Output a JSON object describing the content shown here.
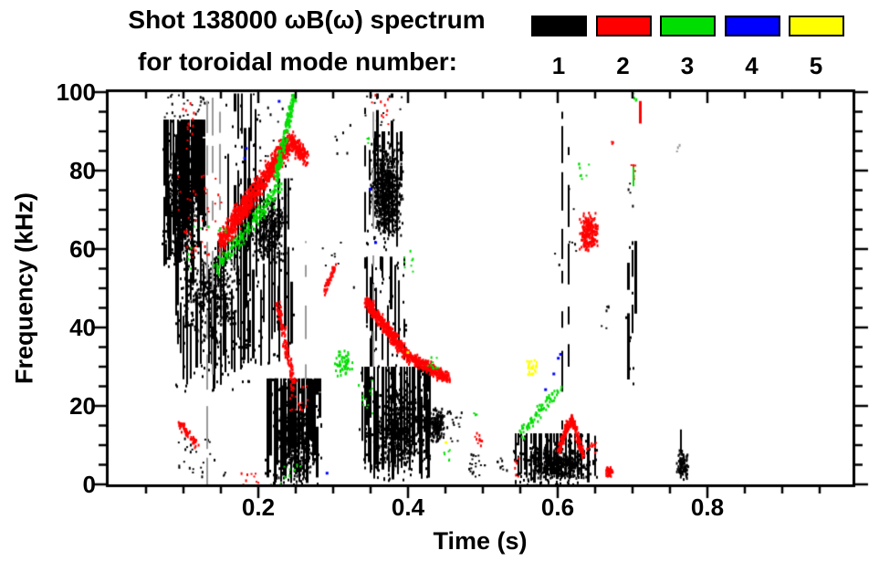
{
  "title": {
    "line1": "Shot 138000 ωB(ω) spectrum",
    "line2": "for toroidal mode number:"
  },
  "legend": {
    "items": [
      {
        "label": "1",
        "color": "#000000"
      },
      {
        "label": "2",
        "color": "#ff0000"
      },
      {
        "label": "3",
        "color": "#00dd00"
      },
      {
        "label": "4",
        "color": "#0000ff"
      },
      {
        "label": "5",
        "color": "#ffff00"
      }
    ]
  },
  "axes": {
    "x": {
      "label": "Time (s)",
      "tick_labels": [
        "0.2",
        "0.4",
        "0.6",
        "0.8"
      ]
    },
    "y": {
      "label": "Frequency (kHz)",
      "tick_labels": [
        "0",
        "20",
        "40",
        "60",
        "80",
        "100"
      ]
    }
  },
  "chart_data": {
    "type": "scatter",
    "title": "Shot 138000 ωB(ω) spectrum for toroidal mode number: 1 2 3 4 5",
    "xlabel": "Time (s)",
    "ylabel": "Frequency (kHz)",
    "xlim": [
      0,
      0.995
    ],
    "ylim": [
      0,
      100
    ],
    "x_major_ticks": [
      0.2,
      0.4,
      0.6,
      0.8
    ],
    "x_minor_step": 0.05,
    "y_major_ticks": [
      0,
      20,
      40,
      60,
      80,
      100
    ],
    "y_minor_step": 5,
    "grid": false,
    "legend_position": "top-right",
    "mode_colors": {
      "1": "#000000",
      "2": "#ff0000",
      "3": "#00dd00",
      "4": "#0000ff",
      "5": "#ffff00",
      "faint": "#9a9a9a"
    },
    "clusters": [
      {
        "m": 1,
        "s": "vstreaks",
        "t": [
          0.073,
          0.128
        ],
        "f": [
          55,
          93
        ],
        "c": 24,
        "dense": true
      },
      {
        "m": 1,
        "s": "blob",
        "t": [
          0.078,
          0.118
        ],
        "f": [
          57,
          90
        ],
        "n": 650
      },
      {
        "m": 1,
        "s": "specks",
        "t": [
          0.073,
          0.132
        ],
        "f": [
          92,
          100
        ],
        "n": 30
      },
      {
        "m": 1,
        "s": "vstreaks",
        "t": [
          0.088,
          0.19
        ],
        "f": [
          24,
          62
        ],
        "c": 30
      },
      {
        "m": 1,
        "s": "blob",
        "t": [
          0.095,
          0.175
        ],
        "f": [
          35,
          60
        ],
        "n": 350
      },
      {
        "m": 1,
        "s": "specks",
        "t": [
          0.088,
          0.155
        ],
        "f": [
          2,
          12
        ],
        "n": 26
      },
      {
        "m": 1,
        "s": "vstreaks",
        "t": [
          0.158,
          0.2
        ],
        "f": [
          60,
          100
        ],
        "c": 9
      },
      {
        "m": 1,
        "s": "vstreaks",
        "t": [
          0.175,
          0.245
        ],
        "f": [
          30,
          78
        ],
        "c": 20
      },
      {
        "m": 1,
        "s": "blob",
        "t": [
          0.19,
          0.24
        ],
        "f": [
          55,
          75
        ],
        "n": 280
      },
      {
        "m": 1,
        "s": "vstreaks",
        "t": [
          0.212,
          0.282
        ],
        "f": [
          0,
          27
        ],
        "c": 26,
        "dense": true
      },
      {
        "m": 1,
        "s": "blob",
        "t": [
          0.222,
          0.275
        ],
        "f": [
          1,
          22
        ],
        "n": 420
      },
      {
        "m": 1,
        "s": "specks",
        "t": [
          0.198,
          0.242
        ],
        "f": [
          80,
          100
        ],
        "n": 16
      },
      {
        "m": 1,
        "s": "specks",
        "t": [
          0.282,
          0.33
        ],
        "f": [
          50,
          62
        ],
        "n": 8
      },
      {
        "m": 1,
        "s": "specks",
        "t": [
          0.298,
          0.33
        ],
        "f": [
          84,
          94
        ],
        "n": 6
      },
      {
        "m": 1,
        "s": "col",
        "at": 0.341,
        "f": [
          55,
          96
        ],
        "w": 2
      },
      {
        "m": 1,
        "s": "blob",
        "t": [
          0.347,
          0.393
        ],
        "f": [
          62,
          88
        ],
        "n": 700
      },
      {
        "m": 1,
        "s": "vstreaks",
        "t": [
          0.348,
          0.392
        ],
        "f": [
          60,
          90
        ],
        "c": 9
      },
      {
        "m": 1,
        "s": "col",
        "at": 0.357,
        "f": [
          86,
          100
        ],
        "w": 3
      },
      {
        "m": 1,
        "s": "col",
        "at": 0.377,
        "f": [
          86,
          100
        ],
        "w": 3
      },
      {
        "m": 1,
        "s": "specks",
        "t": [
          0.34,
          0.392
        ],
        "f": [
          90,
          100
        ],
        "n": 14
      },
      {
        "m": 1,
        "s": "vstreaks",
        "t": [
          0.338,
          0.432
        ],
        "f": [
          1,
          30
        ],
        "c": 32,
        "dense": true
      },
      {
        "m": 1,
        "s": "blob",
        "t": [
          0.35,
          0.425
        ],
        "f": [
          3,
          26
        ],
        "n": 520
      },
      {
        "m": 1,
        "s": "vstreaks",
        "t": [
          0.343,
          0.402
        ],
        "f": [
          28,
          58
        ],
        "c": 13
      },
      {
        "m": 1,
        "s": "blob",
        "t": [
          0.425,
          0.449
        ],
        "f": [
          10,
          20
        ],
        "n": 160
      },
      {
        "m": 1,
        "s": "specks",
        "t": [
          0.449,
          0.473
        ],
        "f": [
          11,
          19
        ],
        "n": 18
      },
      {
        "m": 1,
        "s": "specks",
        "t": [
          0.478,
          0.503
        ],
        "f": [
          2,
          8
        ],
        "n": 22
      },
      {
        "m": 1,
        "s": "specks",
        "t": [
          0.515,
          0.531
        ],
        "f": [
          3,
          7
        ],
        "n": 9
      },
      {
        "m": 1,
        "s": "vstreaks",
        "t": [
          0.543,
          0.652
        ],
        "f": [
          0,
          13
        ],
        "c": 28,
        "dense": true
      },
      {
        "m": 1,
        "s": "blob",
        "t": [
          0.553,
          0.645
        ],
        "f": [
          1,
          10
        ],
        "n": 330
      },
      {
        "m": 1,
        "s": "col",
        "at": 0.605,
        "f": [
          14,
          95
        ],
        "w": 2
      },
      {
        "m": 1,
        "s": "col",
        "at": 0.614,
        "f": [
          30,
          86
        ],
        "w": 2
      },
      {
        "m": 1,
        "s": "specks",
        "t": [
          0.59,
          0.625
        ],
        "f": [
          55,
          85
        ],
        "n": 9
      },
      {
        "m": 1,
        "s": "specks",
        "t": [
          0.655,
          0.668
        ],
        "f": [
          40,
          50
        ],
        "n": 6
      },
      {
        "m": 1,
        "s": "vstreaks",
        "t": [
          0.694,
          0.707
        ],
        "f": [
          24,
          62
        ],
        "c": 3
      },
      {
        "m": 1,
        "s": "specks",
        "t": [
          0.688,
          0.705
        ],
        "f": [
          70,
          82
        ],
        "n": 4
      },
      {
        "m": 1,
        "s": "blob",
        "t": [
          0.757,
          0.774
        ],
        "f": [
          1,
          9
        ],
        "n": 90
      },
      {
        "m": 1,
        "s": "col",
        "at": 0.764,
        "f": [
          8,
          14
        ],
        "w": 2
      },
      {
        "m": 1,
        "s": "col",
        "at": 0.1305,
        "f": [
          0,
          100
        ],
        "w": 2,
        "faint": true
      },
      {
        "m": 1,
        "s": "col",
        "at": 0.138,
        "f": [
          28,
          100
        ],
        "w": 2,
        "faint": true
      },
      {
        "m": 1,
        "s": "col",
        "at": 0.147,
        "f": [
          55,
          95
        ],
        "w": 2,
        "faint": true
      },
      {
        "m": 1,
        "s": "col",
        "at": 0.262,
        "f": [
          20,
          62
        ],
        "w": 2,
        "faint": true
      },
      {
        "m": 1,
        "s": "col",
        "at": 0.352,
        "f": [
          30,
          95
        ],
        "w": 2,
        "faint": true
      },
      {
        "m": 1,
        "s": "specks",
        "t": [
          0.758,
          0.762
        ],
        "f": [
          85,
          89
        ],
        "n": 3,
        "faint": true
      },
      {
        "m": 2,
        "s": "specks",
        "t": [
          0.092,
          0.158
        ],
        "f": [
          58,
          80
        ],
        "n": 40
      },
      {
        "m": 2,
        "s": "specks",
        "t": [
          0.098,
          0.113
        ],
        "f": [
          84,
          100
        ],
        "n": 12
      },
      {
        "m": 2,
        "s": "band",
        "t": [
          0.093,
          0.118
        ],
        "f": [
          16,
          10
        ],
        "n": 60,
        "k": 1.6,
        "j": 0.003
      },
      {
        "m": 2,
        "s": "band",
        "t": [
          0.148,
          0.242
        ],
        "f": [
          62,
          88
        ],
        "n": 950,
        "k": 4.5,
        "j": 0.004
      },
      {
        "m": 2,
        "s": "band",
        "t": [
          0.242,
          0.263
        ],
        "f": [
          88,
          84
        ],
        "n": 160,
        "k": 3.5,
        "j": 0.003
      },
      {
        "m": 2,
        "s": "band",
        "t": [
          0.225,
          0.247
        ],
        "f": [
          46,
          25
        ],
        "n": 130,
        "k": 2.2,
        "j": 0.003
      },
      {
        "m": 2,
        "s": "specks",
        "t": [
          0.24,
          0.266
        ],
        "f": [
          19,
          27
        ],
        "n": 22
      },
      {
        "m": 2,
        "s": "specks",
        "t": [
          0.176,
          0.2
        ],
        "f": [
          0,
          4
        ],
        "n": 9
      },
      {
        "m": 2,
        "s": "band",
        "t": [
          0.287,
          0.301
        ],
        "f": [
          49,
          56
        ],
        "n": 40,
        "k": 1.4,
        "j": 0.002
      },
      {
        "m": 2,
        "s": "specks",
        "t": [
          0.35,
          0.379
        ],
        "f": [
          92,
          100
        ],
        "n": 10
      },
      {
        "m": 2,
        "s": "band",
        "t": [
          0.343,
          0.398
        ],
        "f": [
          47,
          33
        ],
        "n": 430,
        "k": 2.4,
        "j": 0.003
      },
      {
        "m": 2,
        "s": "band",
        "t": [
          0.398,
          0.452
        ],
        "f": [
          33,
          27.5
        ],
        "n": 300,
        "k": 2.2,
        "j": 0.003
      },
      {
        "m": 2,
        "s": "specks",
        "t": [
          0.487,
          0.498
        ],
        "f": [
          10,
          14
        ],
        "n": 11
      },
      {
        "m": 2,
        "s": "band",
        "t": [
          0.6,
          0.617
        ],
        "f": [
          9,
          17.5
        ],
        "n": 120,
        "k": 1.8,
        "j": 0.002
      },
      {
        "m": 2,
        "s": "band",
        "t": [
          0.617,
          0.633
        ],
        "f": [
          17.5,
          8
        ],
        "n": 100,
        "k": 1.8,
        "j": 0.002
      },
      {
        "m": 2,
        "s": "specks",
        "t": [
          0.638,
          0.651
        ],
        "f": [
          8,
          11
        ],
        "n": 13
      },
      {
        "m": 2,
        "s": "blob",
        "t": [
          0.663,
          0.673
        ],
        "f": [
          2,
          5
        ],
        "n": 45
      },
      {
        "m": 2,
        "s": "blob",
        "t": [
          0.627,
          0.653
        ],
        "f": [
          59,
          70
        ],
        "n": 190
      },
      {
        "m": 2,
        "s": "specks",
        "t": [
          0.54,
          0.547
        ],
        "f": [
          2,
          7
        ],
        "n": 6
      },
      {
        "m": 2,
        "s": "col",
        "at": 0.708,
        "f": [
          92,
          100
        ],
        "w": 3
      },
      {
        "m": 2,
        "s": "specks",
        "t": [
          0.697,
          0.704
        ],
        "f": [
          78,
          84
        ],
        "n": 6
      },
      {
        "m": 2,
        "s": "specks",
        "t": [
          0.668,
          0.673
        ],
        "f": [
          87,
          90
        ],
        "n": 3
      },
      {
        "m": 3,
        "s": "band",
        "t": [
          0.143,
          0.23
        ],
        "f": [
          55,
          77
        ],
        "n": 190,
        "k": 3,
        "j": 0.004
      },
      {
        "m": 3,
        "s": "band",
        "t": [
          0.222,
          0.247
        ],
        "f": [
          78,
          100
        ],
        "n": 170,
        "k": 3,
        "j": 0.003
      },
      {
        "m": 3,
        "s": "specks",
        "t": [
          0.1,
          0.156
        ],
        "f": [
          55,
          66
        ],
        "n": 12
      },
      {
        "m": 3,
        "s": "specks",
        "t": [
          0.228,
          0.256
        ],
        "f": [
          0,
          6
        ],
        "n": 8
      },
      {
        "m": 3,
        "s": "blob",
        "t": [
          0.3,
          0.327
        ],
        "f": [
          27,
          35
        ],
        "n": 55
      },
      {
        "m": 3,
        "s": "specks",
        "t": [
          0.333,
          0.353
        ],
        "f": [
          18,
          27
        ],
        "n": 12
      },
      {
        "m": 3,
        "s": "specks",
        "t": [
          0.39,
          0.406
        ],
        "f": [
          53,
          60
        ],
        "n": 8
      },
      {
        "m": 3,
        "s": "specks",
        "t": [
          0.425,
          0.441
        ],
        "f": [
          29,
          33
        ],
        "n": 10
      },
      {
        "m": 3,
        "s": "specks",
        "t": [
          0.447,
          0.456
        ],
        "f": [
          6,
          10
        ],
        "n": 6
      },
      {
        "m": 3,
        "s": "specks",
        "t": [
          0.486,
          0.492
        ],
        "f": [
          16,
          19
        ],
        "n": 3
      },
      {
        "m": 3,
        "s": "band",
        "t": [
          0.548,
          0.602
        ],
        "f": [
          13,
          25
        ],
        "n": 75,
        "k": 2.6,
        "j": 0.004
      },
      {
        "m": 3,
        "s": "specks",
        "t": [
          0.627,
          0.641
        ],
        "f": [
          76,
          82
        ],
        "n": 8
      },
      {
        "m": 3,
        "s": "col",
        "at": 0.7,
        "f": [
          76,
          81
        ],
        "w": 2
      },
      {
        "m": 3,
        "s": "specks",
        "t": [
          0.7,
          0.704
        ],
        "f": [
          97,
          100
        ],
        "n": 4
      },
      {
        "m": 3,
        "s": "specks",
        "t": [
          0.342,
          0.347
        ],
        "f": [
          86,
          89
        ],
        "n": 3
      },
      {
        "m": 4,
        "s": "points",
        "pts": [
          [
            0.182,
            86
          ],
          [
            0.18,
            83.5
          ],
          [
            0.226,
            98
          ],
          [
            0.348,
            75.6
          ],
          [
            0.355,
            62
          ],
          [
            0.29,
            3.2
          ],
          [
            0.599,
            32.5
          ],
          [
            0.602,
            33.5
          ],
          [
            0.593,
            28.5
          ],
          [
            0.582,
            24.5
          ]
        ]
      },
      {
        "m": 5,
        "s": "blob",
        "t": [
          0.556,
          0.573
        ],
        "f": [
          27,
          33
        ],
        "n": 26
      },
      {
        "m": 5,
        "s": "points",
        "pts": [
          [
            0.398,
            34
          ],
          [
            0.449,
            11
          ]
        ]
      }
    ]
  }
}
